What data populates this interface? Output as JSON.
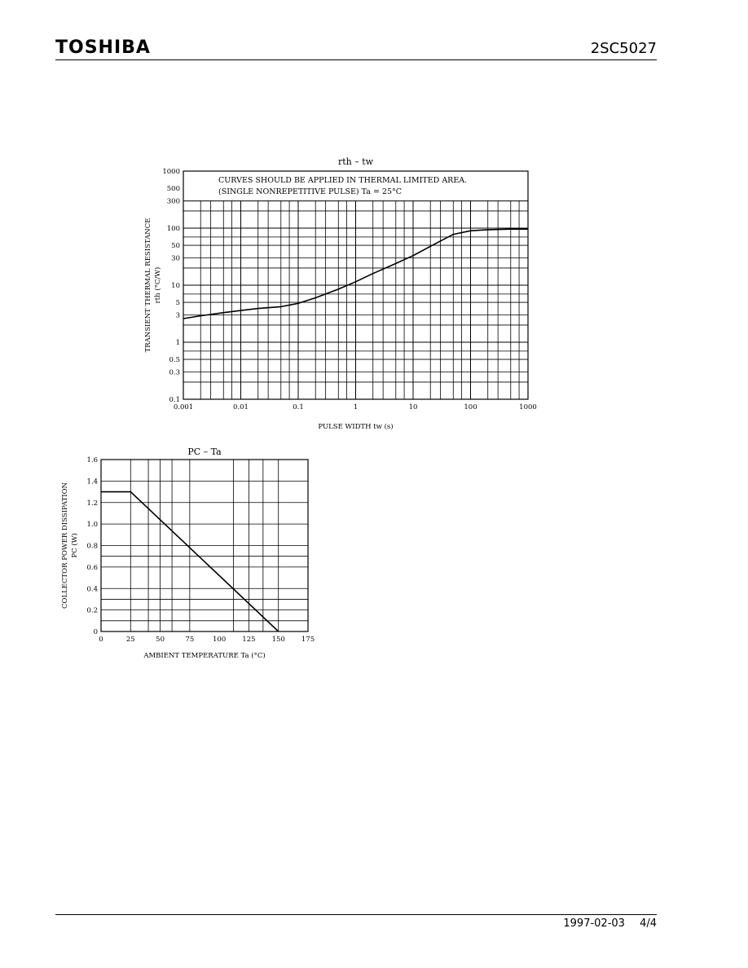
{
  "header": {
    "brand": "TOSHIBA",
    "part_number": "2SC5027"
  },
  "footer": {
    "date": "1997-02-03",
    "page": "4/4"
  },
  "chart_data": [
    {
      "type": "line",
      "title": "rth – tw",
      "xlabel": "PULSE WIDTH  tw  (s)",
      "ylabel": "TRANSIENT THERMAL RESISTANCE",
      "ylabel_symbol": "rth  (°C/W)",
      "xscale": "log",
      "yscale": "log",
      "xlim": [
        0.001,
        1000
      ],
      "ylim": [
        0.1,
        1000
      ],
      "x_ticks": [
        0.001,
        0.01,
        0.1,
        1,
        10,
        100,
        1000
      ],
      "x_tick_labels": [
        "0.001",
        "0.01",
        "0.1",
        "1",
        "10",
        "100",
        "1000"
      ],
      "y_ticks": [
        0.1,
        0.3,
        0.5,
        1,
        3,
        5,
        10,
        30,
        50,
        100,
        300,
        500,
        1000
      ],
      "y_tick_labels": [
        "0.1",
        "0.3",
        "0.5",
        "1",
        "3",
        "5",
        "10",
        "30",
        "50",
        "100",
        "300",
        "500",
        "1000"
      ],
      "annotations": [
        "CURVES SHOULD BE APPLIED IN THERMAL LIMITED AREA.",
        "(SINGLE NONREPETITIVE PULSE)   Ta = 25°C"
      ],
      "grid": true,
      "series": [
        {
          "x": [
            0.001,
            0.002,
            0.005,
            0.01,
            0.02,
            0.05,
            0.1,
            0.2,
            0.5,
            1,
            2,
            5,
            10,
            20,
            50,
            100,
            200,
            500,
            1000
          ],
          "values": [
            2.6,
            2.9,
            3.3,
            3.6,
            3.9,
            4.2,
            4.8,
            6.0,
            8.5,
            11.5,
            16,
            24,
            33,
            48,
            78,
            90,
            94,
            96,
            96
          ]
        }
      ]
    },
    {
      "type": "line",
      "title": "PC – Ta",
      "xlabel": "AMBIENT TEMPERATURE   Ta   (°C)",
      "ylabel": "COLLECTOR POWER DISSIPATION",
      "ylabel_symbol": "PC   (W)",
      "xlim": [
        0,
        175
      ],
      "ylim": [
        0,
        1.6
      ],
      "x_ticks": [
        0,
        25,
        50,
        75,
        100,
        125,
        150,
        175
      ],
      "x_tick_labels": [
        "0",
        "25",
        "50",
        "75",
        "100",
        "125",
        "150",
        "175"
      ],
      "y_ticks": [
        0,
        0.2,
        0.4,
        0.6,
        0.8,
        1.0,
        1.2,
        1.4,
        1.6
      ],
      "y_tick_labels": [
        "0",
        "0.2",
        "0.4",
        "0.6",
        "0.8",
        "1.0",
        "1.2",
        "1.4",
        "1.6"
      ],
      "grid": true,
      "series": [
        {
          "x": [
            0,
            25,
            150
          ],
          "values": [
            1.3,
            1.3,
            0
          ]
        }
      ]
    }
  ]
}
